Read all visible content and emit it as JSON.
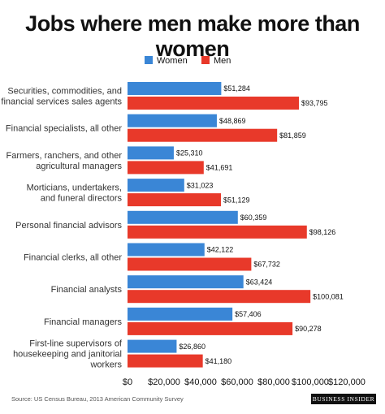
{
  "chart_data": {
    "type": "bar",
    "orientation": "horizontal",
    "title": "Jobs where men make more than women",
    "categories": [
      [
        "Securities, commodities, and",
        "financial services sales agents"
      ],
      [
        "Financial specialists, all other"
      ],
      [
        "Farmers, ranchers, and other",
        "agricultural managers"
      ],
      [
        "Morticians, undertakers,",
        "and funeral directors"
      ],
      [
        "Personal financial advisors"
      ],
      [
        "Financial clerks, all other"
      ],
      [
        "Financial analysts"
      ],
      [
        "Financial managers"
      ],
      [
        "First-line supervisors of",
        "housekeeping and janitorial",
        "workers"
      ]
    ],
    "series": [
      {
        "name": "Women",
        "color": "#3a86d6",
        "values": [
          51284,
          48869,
          25310,
          31023,
          60359,
          42122,
          63424,
          57406,
          26860
        ],
        "labels": [
          "$51,284",
          "$48,869",
          "$25,310",
          "$31,023",
          "$60,359",
          "$42,122",
          "$63,424",
          "$57,406",
          "$26,860"
        ]
      },
      {
        "name": "Men",
        "color": "#e8392a",
        "values": [
          93795,
          81859,
          41691,
          51129,
          98126,
          67732,
          100081,
          90278,
          41180
        ],
        "labels": [
          "$93,795",
          "$81,859",
          "$41,691",
          "$51,129",
          "$98,126",
          "$67,732",
          "$100,081",
          "$90,278",
          "$41,180"
        ]
      }
    ],
    "xlim": [
      0,
      120000
    ],
    "xticks": [
      0,
      20000,
      40000,
      60000,
      80000,
      100000,
      120000
    ],
    "xtick_labels": [
      "$0",
      "$20,000",
      "$40,000",
      "$60,000",
      "$80,000",
      "$100,000",
      "$120,000"
    ],
    "legend": "top-center",
    "grid": false
  },
  "footer": {
    "source": "Source: US Census Bureau, 2013 American Community Survey",
    "brand": "BUSINESS INSIDER"
  }
}
